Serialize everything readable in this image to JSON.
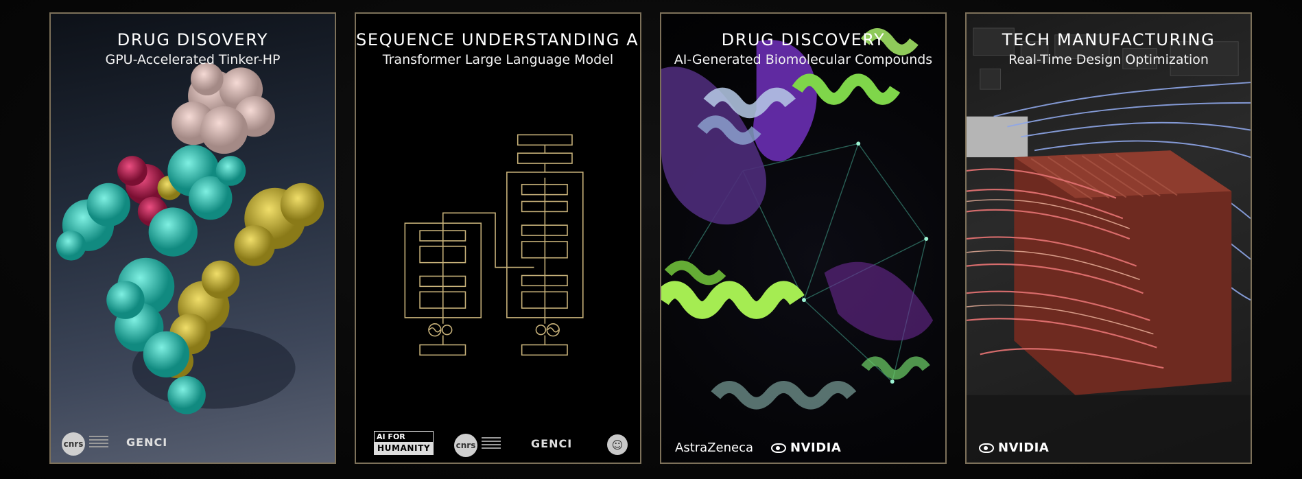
{
  "panels": [
    {
      "title": "DRUG DISOVERY",
      "subtitle": "GPU-Accelerated Tinker-HP",
      "logos": [
        "cnrs",
        "GENCI"
      ]
    },
    {
      "title": "SEQUENCE UNDERSTANDING AI",
      "subtitle": "Transformer Large Language Model",
      "logos": [
        "AI FOR",
        "HUMANITY",
        "cnrs",
        "GENCI"
      ]
    },
    {
      "title": "DRUG DISCOVERY",
      "subtitle": "AI-Generated Biomolecular Compounds",
      "logos": [
        "AstraZeneca",
        "NVIDIA"
      ]
    },
    {
      "title": "TECH MANUFACTURING",
      "subtitle": "Real-Time Design Optimization",
      "logos": [
        "NVIDIA"
      ]
    }
  ],
  "colors": {
    "frame": "#7d715a",
    "diagram": "#c8b27a"
  }
}
